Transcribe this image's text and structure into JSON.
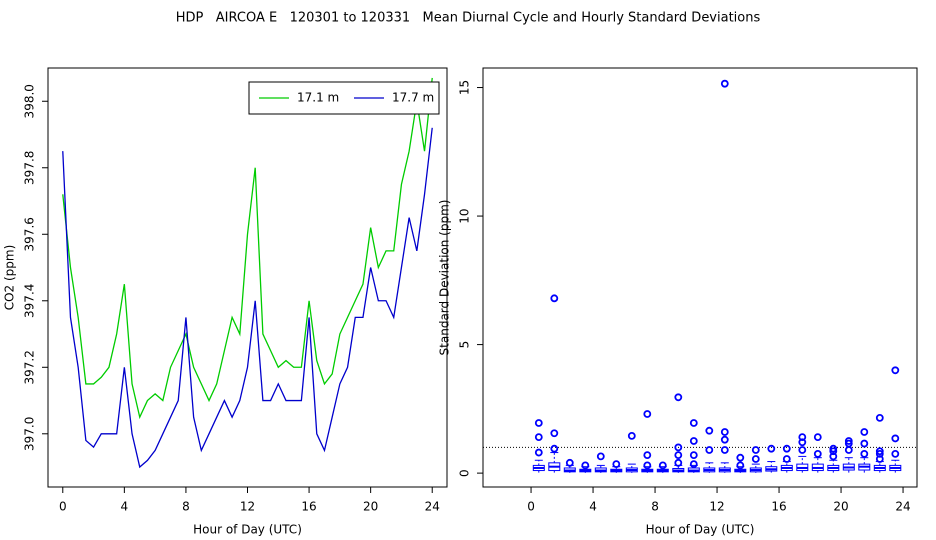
{
  "title": "HDP   AIRCOA E   120301 to 120331   Mean Diurnal Cycle and Hourly Standard Deviations",
  "chart_data": [
    {
      "type": "line",
      "xlabel": "Hour of Day (UTC)",
      "ylabel": "CO2 (ppm)",
      "xlim": [
        -0.96,
        24.96
      ],
      "ylim": [
        396.84,
        398.1
      ],
      "xticks": [
        0,
        4,
        8,
        12,
        16,
        20,
        24
      ],
      "yticks": [
        {
          "value": 397,
          "label": "397.0"
        },
        397.2,
        397.4,
        397.6,
        397.8,
        {
          "value": 398,
          "label": "398.0"
        }
      ],
      "legend": "top-right",
      "x": [
        0,
        0.5,
        1,
        1.5,
        2,
        2.5,
        3,
        3.5,
        4,
        4.5,
        5,
        5.5,
        6,
        6.5,
        7,
        7.5,
        8,
        8.5,
        9,
        9.5,
        10,
        10.5,
        11,
        11.5,
        12,
        12.5,
        13,
        13.5,
        14,
        14.5,
        15,
        15.5,
        16,
        16.5,
        17,
        17.5,
        18,
        18.5,
        19,
        19.5,
        20,
        20.5,
        21,
        21.5,
        22,
        22.5,
        23,
        23.5,
        24
      ],
      "series": [
        {
          "name": "17.1 m",
          "color": "#00cc00",
          "values": [
            397.72,
            397.5,
            397.35,
            397.15,
            397.15,
            397.17,
            397.2,
            397.3,
            397.45,
            397.15,
            397.05,
            397.1,
            397.12,
            397.1,
            397.2,
            397.25,
            397.3,
            397.2,
            397.15,
            397.1,
            397.15,
            397.25,
            397.35,
            397.3,
            397.6,
            397.8,
            397.3,
            397.25,
            397.2,
            397.22,
            397.2,
            397.2,
            397.4,
            397.22,
            397.15,
            397.18,
            397.3,
            397.35,
            397.4,
            397.45,
            397.62,
            397.5,
            397.55,
            397.55,
            397.75,
            397.85,
            398.0,
            397.85,
            398.07
          ]
        },
        {
          "name": "17.7 m",
          "color": "#0000cc",
          "values": [
            397.85,
            397.35,
            397.2,
            396.98,
            396.96,
            397.0,
            397.0,
            397.0,
            397.2,
            397.0,
            396.9,
            396.92,
            396.95,
            397.0,
            397.05,
            397.1,
            397.35,
            397.05,
            396.95,
            397.0,
            397.05,
            397.1,
            397.05,
            397.1,
            397.2,
            397.4,
            397.1,
            397.1,
            397.15,
            397.1,
            397.1,
            397.1,
            397.35,
            397.0,
            396.95,
            397.05,
            397.15,
            397.2,
            397.35,
            397.35,
            397.5,
            397.4,
            397.4,
            397.35,
            397.5,
            397.65,
            397.55,
            397.72,
            397.92
          ]
        }
      ]
    },
    {
      "type": "box",
      "xlabel": "Hour of Day (UTC)",
      "ylabel": "Standard Deviation (ppm)",
      "xlim": [
        -3.1,
        24.9
      ],
      "ylim": [
        -0.54,
        15.76
      ],
      "xticks": [
        0,
        4,
        8,
        12,
        16,
        20,
        24
      ],
      "yticks": [
        0,
        5,
        10,
        15
      ],
      "hline": 1,
      "color": "#0000ff",
      "boxes": [
        {
          "x": 0.5,
          "min": 0.02,
          "q1": 0.1,
          "median": 0.2,
          "q3": 0.3,
          "max": 0.5,
          "outliers": [
            0.8,
            1.4,
            1.95
          ]
        },
        {
          "x": 1.5,
          "min": 0.02,
          "q1": 0.1,
          "median": 0.25,
          "q3": 0.4,
          "max": 0.8,
          "outliers": [
            0.95,
            1.55,
            6.8
          ]
        },
        {
          "x": 2.5,
          "min": 0.01,
          "q1": 0.05,
          "median": 0.1,
          "q3": 0.2,
          "max": 0.3,
          "outliers": [
            0.4
          ]
        },
        {
          "x": 3.5,
          "min": 0.01,
          "q1": 0.05,
          "median": 0.1,
          "q3": 0.15,
          "max": 0.25,
          "outliers": [
            0.3
          ]
        },
        {
          "x": 4.5,
          "min": 0.01,
          "q1": 0.05,
          "median": 0.1,
          "q3": 0.2,
          "max": 0.3,
          "outliers": [
            0.65
          ]
        },
        {
          "x": 5.5,
          "min": 0.01,
          "q1": 0.05,
          "median": 0.1,
          "q3": 0.15,
          "max": 0.25,
          "outliers": [
            0.35
          ]
        },
        {
          "x": 6.5,
          "min": 0.01,
          "q1": 0.05,
          "median": 0.12,
          "q3": 0.2,
          "max": 0.35,
          "outliers": [
            1.45
          ]
        },
        {
          "x": 7.5,
          "min": 0.01,
          "q1": 0.05,
          "median": 0.1,
          "q3": 0.15,
          "max": 0.25,
          "outliers": [
            0.3,
            0.7,
            2.3
          ]
        },
        {
          "x": 8.5,
          "min": 0.01,
          "q1": 0.05,
          "median": 0.1,
          "q3": 0.15,
          "max": 0.25,
          "outliers": [
            0.3
          ]
        },
        {
          "x": 9.5,
          "min": 0.01,
          "q1": 0.05,
          "median": 0.1,
          "q3": 0.18,
          "max": 0.3,
          "outliers": [
            0.4,
            0.7,
            1.0,
            2.95
          ]
        },
        {
          "x": 10.5,
          "min": 0.01,
          "q1": 0.05,
          "median": 0.1,
          "q3": 0.2,
          "max": 0.3,
          "outliers": [
            0.35,
            0.7,
            1.25,
            1.95
          ]
        },
        {
          "x": 11.5,
          "min": 0.01,
          "q1": 0.05,
          "median": 0.12,
          "q3": 0.2,
          "max": 0.4,
          "outliers": [
            0.9,
            1.65
          ]
        },
        {
          "x": 12.5,
          "min": 0.01,
          "q1": 0.05,
          "median": 0.12,
          "q3": 0.2,
          "max": 0.4,
          "outliers": [
            0.9,
            1.3,
            1.6,
            15.15
          ]
        },
        {
          "x": 13.5,
          "min": 0.01,
          "q1": 0.05,
          "median": 0.1,
          "q3": 0.15,
          "max": 0.25,
          "outliers": [
            0.3,
            0.6
          ]
        },
        {
          "x": 14.5,
          "min": 0.01,
          "q1": 0.05,
          "median": 0.12,
          "q3": 0.2,
          "max": 0.35,
          "outliers": [
            0.55,
            0.9
          ]
        },
        {
          "x": 15.5,
          "min": 0.02,
          "q1": 0.08,
          "median": 0.15,
          "q3": 0.25,
          "max": 0.45,
          "outliers": [
            0.95
          ]
        },
        {
          "x": 16.5,
          "min": 0.02,
          "q1": 0.1,
          "median": 0.2,
          "q3": 0.3,
          "max": 0.45,
          "outliers": [
            0.55,
            0.95
          ]
        },
        {
          "x": 17.5,
          "min": 0.02,
          "q1": 0.1,
          "median": 0.2,
          "q3": 0.35,
          "max": 0.65,
          "outliers": [
            0.9,
            1.2,
            1.4
          ]
        },
        {
          "x": 18.5,
          "min": 0.02,
          "q1": 0.1,
          "median": 0.2,
          "q3": 0.35,
          "max": 0.6,
          "outliers": [
            0.75,
            1.4
          ]
        },
        {
          "x": 19.5,
          "min": 0.02,
          "q1": 0.1,
          "median": 0.2,
          "q3": 0.3,
          "max": 0.5,
          "outliers": [
            0.65,
            0.85,
            0.95
          ]
        },
        {
          "x": 20.5,
          "min": 0.02,
          "q1": 0.12,
          "median": 0.22,
          "q3": 0.35,
          "max": 0.6,
          "outliers": [
            0.9,
            1.15,
            1.25
          ]
        },
        {
          "x": 21.5,
          "min": 0.02,
          "q1": 0.12,
          "median": 0.25,
          "q3": 0.35,
          "max": 0.6,
          "outliers": [
            0.75,
            1.15,
            1.6
          ]
        },
        {
          "x": 22.5,
          "min": 0.02,
          "q1": 0.1,
          "median": 0.2,
          "q3": 0.3,
          "max": 0.45,
          "outliers": [
            0.55,
            0.75,
            0.85,
            2.15
          ]
        },
        {
          "x": 23.5,
          "min": 0.02,
          "q1": 0.1,
          "median": 0.2,
          "q3": 0.3,
          "max": 0.5,
          "outliers": [
            0.75,
            1.35,
            4.0
          ]
        }
      ]
    }
  ]
}
